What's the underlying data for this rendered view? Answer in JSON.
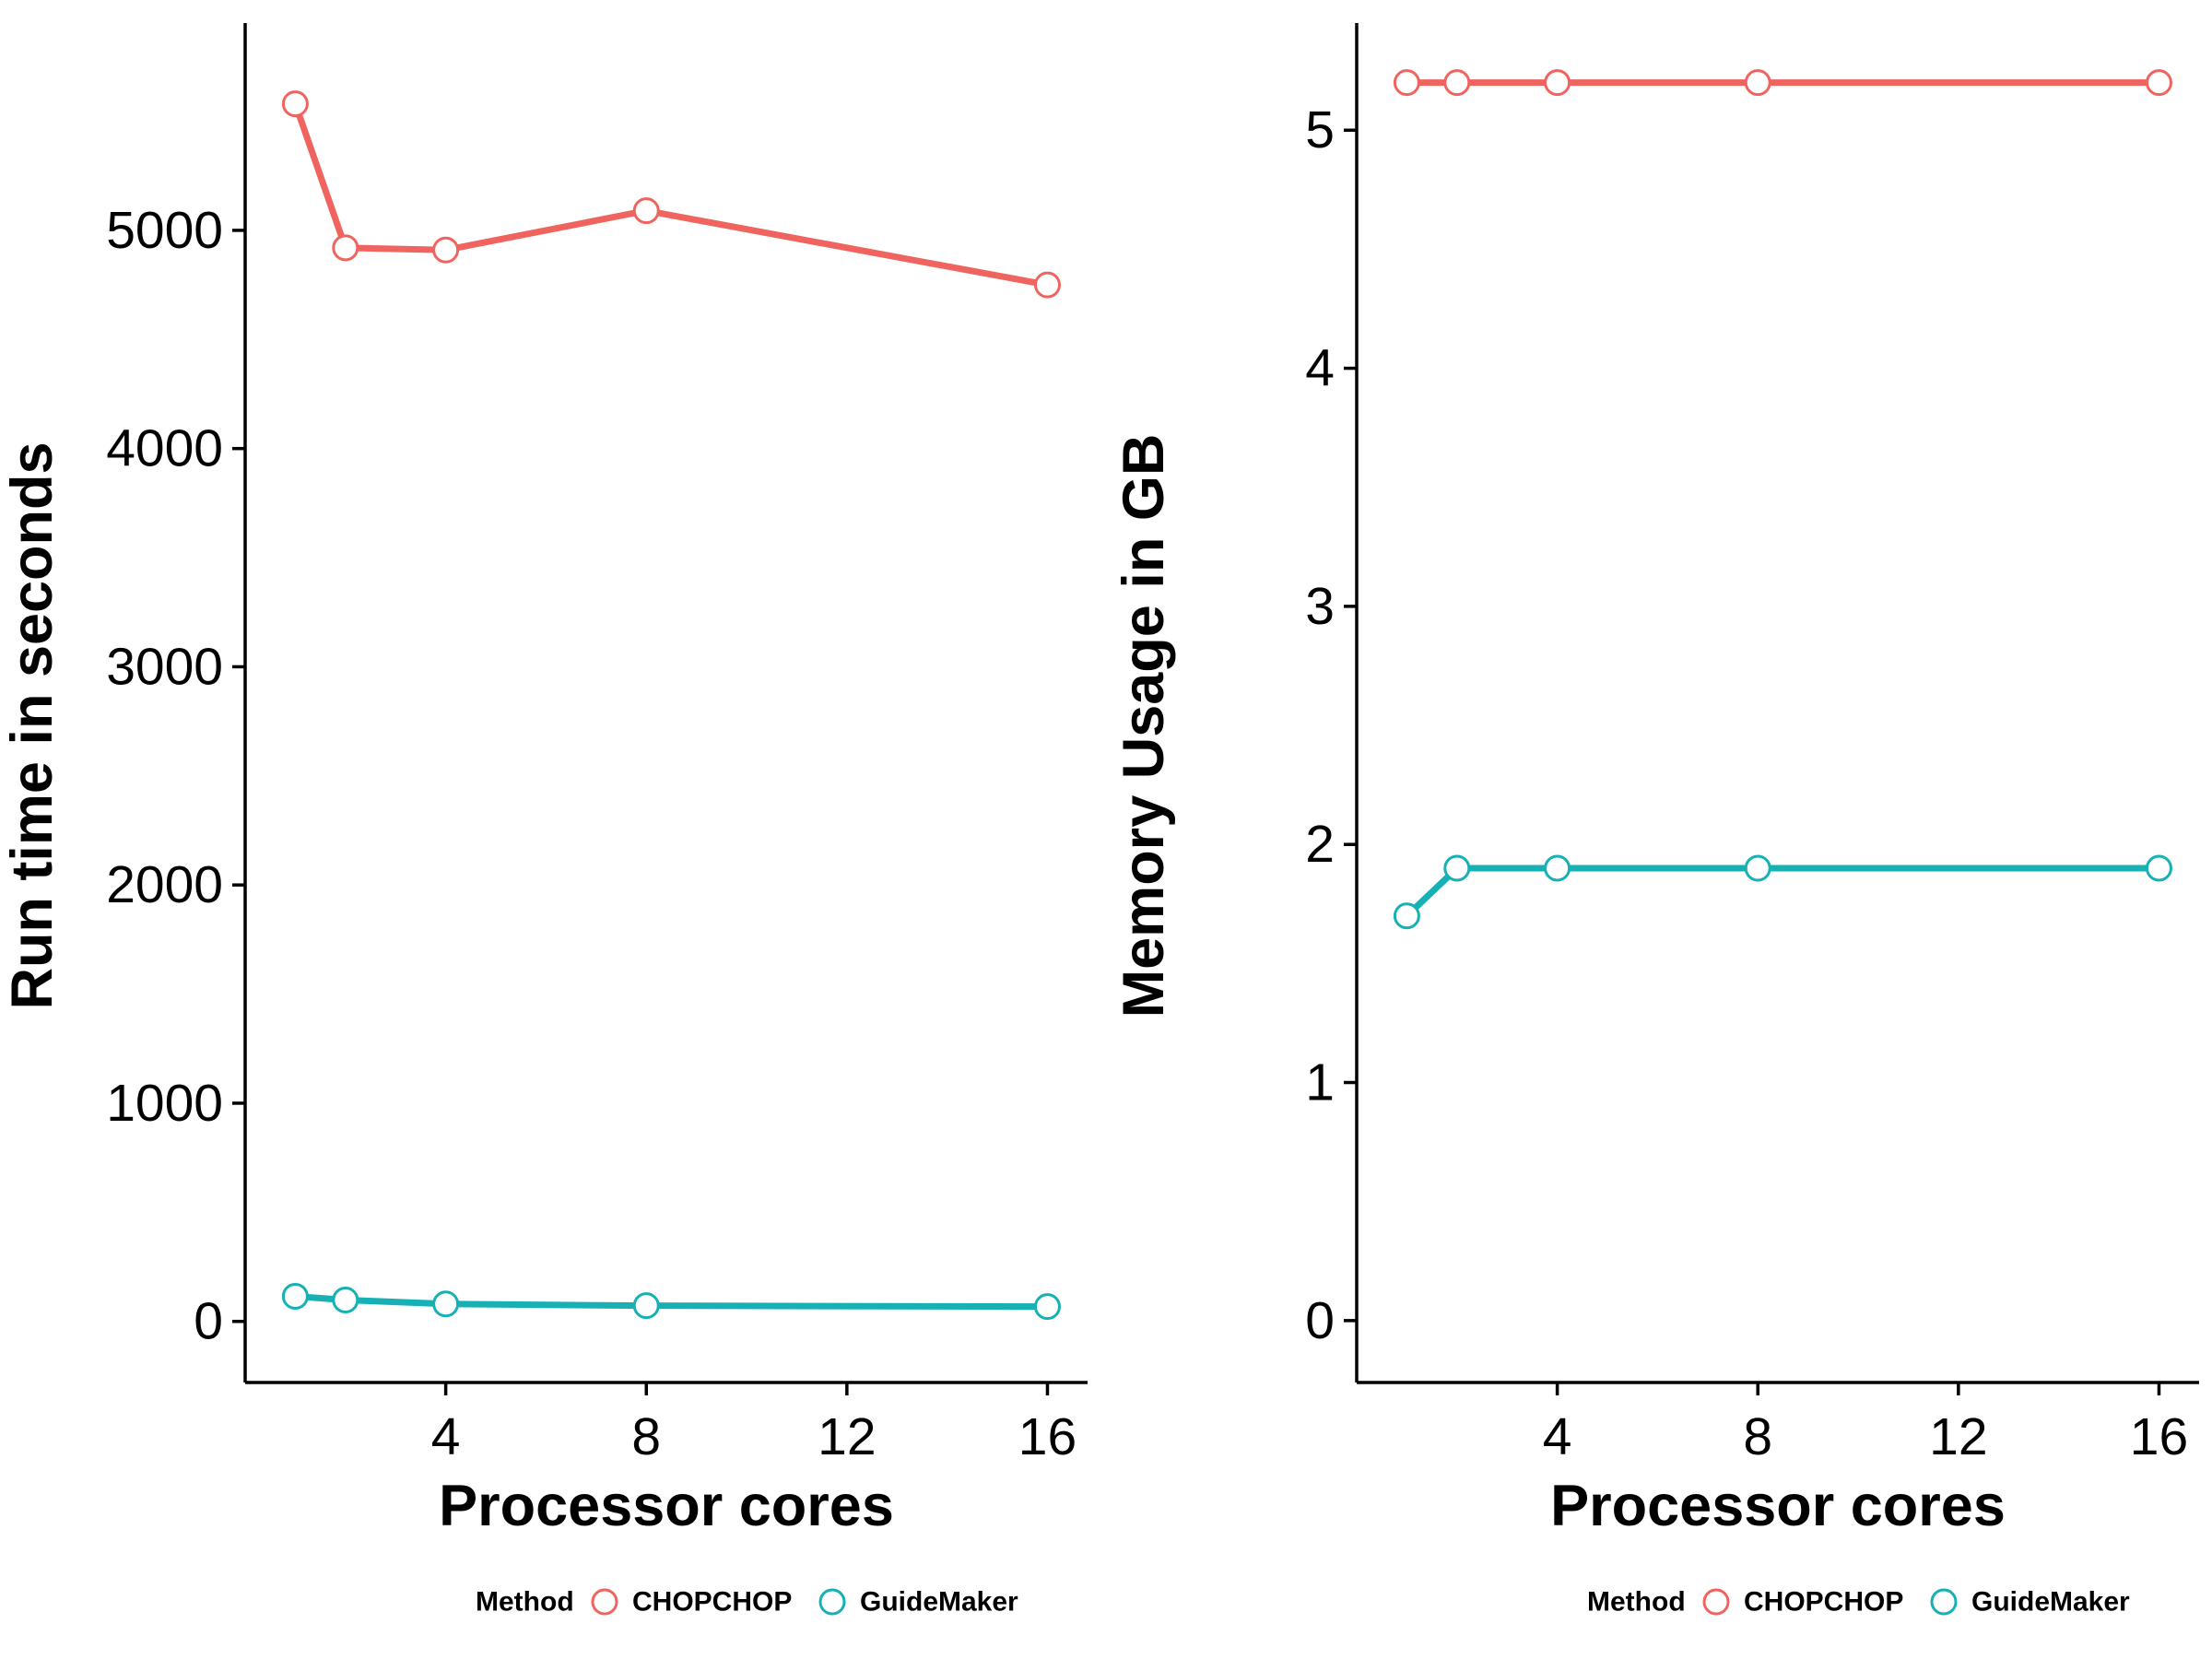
{
  "chart_data": [
    {
      "type": "line",
      "title": "",
      "xlabel": "Processor cores",
      "ylabel": "Run time in seconds",
      "xlim": [
        0,
        16.8
      ],
      "ylim": [
        -280,
        5950
      ],
      "xticks": [
        4,
        8,
        12,
        16
      ],
      "yticks": [
        0,
        1000,
        2000,
        3000,
        4000,
        5000
      ],
      "grid": false,
      "legend_position": "bottom-right",
      "legend_title": "Method",
      "x": [
        1,
        2,
        4,
        8,
        16
      ],
      "series": [
        {
          "name": "CHOPCHOP",
          "color": "#F0645F",
          "values": [
            5580,
            4920,
            4910,
            5090,
            4750
          ]
        },
        {
          "name": "GuideMaker",
          "color": "#17B1B5",
          "values": [
            115,
            98,
            80,
            72,
            68
          ]
        }
      ]
    },
    {
      "type": "line",
      "title": "",
      "xlabel": "Processor cores",
      "ylabel": "Memory Usage in GB",
      "xlim": [
        0,
        16.8
      ],
      "ylim": [
        -0.26,
        5.45
      ],
      "xticks": [
        4,
        8,
        12,
        16
      ],
      "yticks": [
        0,
        1,
        2,
        3,
        4,
        5
      ],
      "grid": false,
      "legend_position": "bottom-right",
      "legend_title": "Method",
      "x": [
        1,
        2,
        4,
        8,
        16
      ],
      "series": [
        {
          "name": "CHOPCHOP",
          "color": "#F0645F",
          "values": [
            5.2,
            5.2,
            5.2,
            5.2,
            5.2
          ]
        },
        {
          "name": "GuideMaker",
          "color": "#17B1B5",
          "values": [
            1.7,
            1.9,
            1.9,
            1.9,
            1.9
          ]
        }
      ]
    }
  ]
}
